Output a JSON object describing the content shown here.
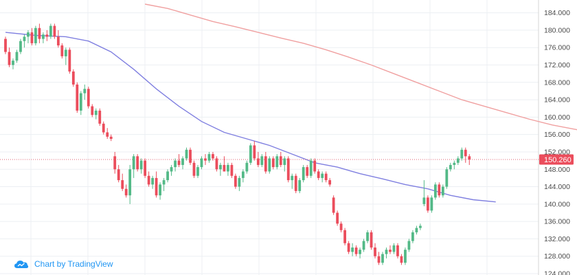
{
  "chart_data": {
    "type": "candlestick",
    "ylim": [
      124,
      186
    ],
    "y_ticks": [
      "124.000",
      "128.000",
      "132.000",
      "136.000",
      "140.000",
      "144.000",
      "148.000",
      "152.000",
      "156.000",
      "160.000",
      "164.000",
      "168.000",
      "172.000",
      "176.000",
      "180.000",
      "184.000"
    ],
    "last_price": 150.26,
    "last_price_label": "150.260",
    "grid": true,
    "colors": {
      "up": "#53b987",
      "down": "#eb4d5c",
      "ma_fast": "#7f7fe0",
      "ma_slow": "#f0a0a0",
      "price_line": "#e06070",
      "grid": "#eceff3",
      "axis_text": "#4a4a4a",
      "watermark": "#2196f3"
    },
    "candles": [
      [
        178,
        178.5,
        174.5,
        175
      ],
      [
        175,
        176,
        171.5,
        172
      ],
      [
        172,
        173.5,
        171,
        173
      ],
      [
        173,
        175.5,
        172.5,
        175
      ],
      [
        175,
        178,
        174.5,
        177.5
      ],
      [
        177.5,
        179,
        176,
        178.5
      ],
      [
        178.5,
        180,
        177,
        179.5
      ],
      [
        179.5,
        180.5,
        176.5,
        177
      ],
      [
        177,
        181,
        176.5,
        180.5
      ],
      [
        180.5,
        181.5,
        177,
        178
      ],
      [
        178,
        179.5,
        177,
        179
      ],
      [
        179,
        180,
        177.5,
        178.5
      ],
      [
        178.5,
        181.5,
        178,
        181
      ],
      [
        181,
        181.5,
        178,
        178.5
      ],
      [
        178.5,
        180,
        176,
        176.5
      ],
      [
        176.5,
        177,
        173.5,
        174
      ],
      [
        174,
        176,
        172,
        175.5
      ],
      [
        175.5,
        176,
        170,
        170.5
      ],
      [
        170.5,
        171,
        167,
        167.5
      ],
      [
        167.5,
        168,
        161,
        161.5
      ],
      [
        161.5,
        166,
        160.5,
        165.5
      ],
      [
        165.5,
        167.5,
        164,
        166.5
      ],
      [
        166.5,
        167,
        162,
        162.5
      ],
      [
        162.5,
        163,
        160,
        160.5
      ],
      [
        160.5,
        162,
        159.5,
        161.5
      ],
      [
        161.5,
        162,
        158,
        158.5
      ],
      [
        158.5,
        159,
        156,
        156.5
      ],
      [
        156.5,
        157.5,
        155,
        155.5
      ],
      [
        155.5,
        156,
        154.5,
        155
      ],
      [
        151,
        152,
        147,
        148
      ],
      [
        148,
        149,
        145,
        145.5
      ],
      [
        145.5,
        147,
        143,
        143.5
      ],
      [
        143.5,
        144.5,
        141.5,
        142
      ],
      [
        142,
        149,
        140,
        148
      ],
      [
        148,
        151.5,
        146,
        151
      ],
      [
        151,
        151.5,
        147.5,
        148
      ],
      [
        148,
        150.5,
        147,
        150
      ],
      [
        150,
        150.5,
        146,
        146.5
      ],
      [
        146.5,
        147.5,
        144,
        144.5
      ],
      [
        144.5,
        146.5,
        143.5,
        146
      ],
      [
        146,
        147.5,
        141.5,
        142
      ],
      [
        142,
        145,
        141,
        144.5
      ],
      [
        144.5,
        146,
        143,
        145.5
      ],
      [
        145.5,
        148,
        145,
        147.5
      ],
      [
        147.5,
        149,
        146.5,
        148.5
      ],
      [
        148.5,
        150.5,
        147.5,
        150
      ],
      [
        150,
        151.5,
        148.5,
        149
      ],
      [
        149,
        151,
        148,
        150.5
      ],
      [
        150.5,
        153,
        150,
        152.5
      ],
      [
        152.5,
        153,
        149,
        149.5
      ],
      [
        149.5,
        150,
        146,
        146.5
      ],
      [
        146.5,
        149,
        146,
        148.5
      ],
      [
        148.5,
        151,
        148,
        150.5
      ],
      [
        150.5,
        151.5,
        149,
        150
      ],
      [
        150,
        152,
        149.5,
        151.5
      ],
      [
        151.5,
        152,
        150,
        150.5
      ],
      [
        150.5,
        151,
        147.5,
        148
      ],
      [
        148,
        149.5,
        146.5,
        149
      ],
      [
        149,
        151,
        147.5,
        147.5
      ],
      [
        147.5,
        149.5,
        146.5,
        149
      ],
      [
        149,
        149.5,
        146,
        146.5
      ],
      [
        146.5,
        147,
        143.5,
        144
      ],
      [
        144,
        146.5,
        143,
        146
      ],
      [
        146,
        148,
        145,
        147.5
      ],
      [
        147.5,
        150,
        147,
        149.5
      ],
      [
        149.5,
        154,
        149,
        153.5
      ],
      [
        153.5,
        154.5,
        150,
        150.5
      ],
      [
        150.5,
        152,
        148.5,
        149
      ],
      [
        149,
        151.5,
        148.5,
        151
      ],
      [
        151,
        152,
        147,
        147.5
      ],
      [
        147.5,
        151,
        147,
        150.5
      ],
      [
        150.5,
        151,
        148,
        148.5
      ],
      [
        148.5,
        151.5,
        148,
        151
      ],
      [
        151,
        152,
        148.5,
        149
      ],
      [
        149,
        151,
        147.5,
        150.5
      ],
      [
        150.5,
        151,
        145,
        145.5
      ],
      [
        145.5,
        147,
        143.5,
        146.5
      ],
      [
        146.5,
        147,
        142.5,
        143
      ],
      [
        143,
        146,
        142.5,
        145.5
      ],
      [
        145.5,
        149,
        145,
        148.5
      ],
      [
        148.5,
        149,
        146,
        146.5
      ],
      [
        146.5,
        150.5,
        146,
        150
      ],
      [
        150,
        150.5,
        147,
        147.5
      ],
      [
        147.5,
        148,
        145.5,
        146
      ],
      [
        146,
        147.5,
        145,
        147
      ],
      [
        147,
        147.5,
        145,
        145.5
      ],
      [
        145.5,
        146,
        144,
        144.5
      ],
      [
        141.5,
        142,
        137.5,
        138
      ],
      [
        138,
        138.5,
        135,
        135.5
      ],
      [
        135.5,
        136,
        133.5,
        134
      ],
      [
        134,
        134.5,
        130.5,
        131
      ],
      [
        131,
        131.5,
        128.5,
        129
      ],
      [
        129,
        131,
        128,
        130
      ],
      [
        130,
        130.5,
        128,
        128.5
      ],
      [
        128.5,
        130,
        127.5,
        129.5
      ],
      [
        129.5,
        132,
        129,
        131.5
      ],
      [
        131.5,
        134,
        131,
        133.5
      ],
      [
        133.5,
        134,
        129.5,
        130
      ],
      [
        130,
        131,
        127.5,
        128
      ],
      [
        128,
        129,
        126,
        126.5
      ],
      [
        126.5,
        129,
        126,
        128.5
      ],
      [
        128.5,
        130,
        127.5,
        129.5
      ],
      [
        129.5,
        130.5,
        128.5,
        129
      ],
      [
        129,
        131,
        128.5,
        130.5
      ],
      [
        130.5,
        131,
        127.5,
        128
      ],
      [
        128,
        128.5,
        126,
        126.5
      ],
      [
        126.5,
        130,
        126,
        129.5
      ],
      [
        129.5,
        132,
        129,
        131.5
      ],
      [
        131.5,
        134,
        131,
        133.5
      ],
      [
        133.5,
        135,
        133,
        134.5
      ],
      [
        134.5,
        135.5,
        134,
        135
      ],
      [
        140,
        145.5,
        139.5,
        141.5
      ],
      [
        141.5,
        142,
        138,
        138.5
      ],
      [
        138.5,
        142,
        138,
        141.5
      ],
      [
        141.5,
        145,
        141,
        144.5
      ],
      [
        144.5,
        145,
        141.5,
        142
      ],
      [
        142,
        144.5,
        141.5,
        144
      ],
      [
        144,
        148.5,
        143.5,
        148
      ],
      [
        148,
        149.5,
        147.5,
        149
      ],
      [
        149,
        150,
        148,
        149.5
      ],
      [
        149.5,
        151,
        149,
        150.5
      ],
      [
        150.5,
        153,
        150,
        152.5
      ],
      [
        152.5,
        153,
        149.5,
        151
      ],
      [
        151,
        151.5,
        149,
        150.26
      ]
    ],
    "ma_fast": [
      [
        0,
        179.5
      ],
      [
        8,
        178.8
      ],
      [
        16,
        178.5
      ],
      [
        22,
        177.5
      ],
      [
        28,
        175
      ],
      [
        34,
        171
      ],
      [
        40,
        166.5
      ],
      [
        46,
        162.5
      ],
      [
        52,
        159
      ],
      [
        58,
        156.5
      ],
      [
        64,
        155
      ],
      [
        70,
        153.5
      ],
      [
        76,
        151.5
      ],
      [
        82,
        149.5
      ],
      [
        88,
        148.5
      ],
      [
        94,
        147
      ],
      [
        100,
        145.8
      ],
      [
        106,
        144.5
      ],
      [
        112,
        143.5
      ],
      [
        118,
        142
      ],
      [
        124,
        141
      ],
      [
        130,
        140.5
      ]
    ],
    "ma_slow": [
      [
        37,
        186
      ],
      [
        43,
        185
      ],
      [
        49,
        183.5
      ],
      [
        55,
        182
      ],
      [
        61,
        180.8
      ],
      [
        67,
        179.5
      ],
      [
        73,
        178.2
      ],
      [
        79,
        177
      ],
      [
        85,
        175.5
      ],
      [
        91,
        173.8
      ],
      [
        97,
        172
      ],
      [
        103,
        170
      ],
      [
        109,
        168
      ],
      [
        115,
        166
      ],
      [
        121,
        164
      ],
      [
        127,
        162.5
      ],
      [
        133,
        161
      ],
      [
        139,
        159.5
      ],
      [
        145,
        158.2
      ],
      [
        151,
        157.2
      ],
      [
        157,
        156.3
      ],
      [
        162,
        155.5
      ]
    ],
    "watermark_text": "Chart by TradingView"
  }
}
